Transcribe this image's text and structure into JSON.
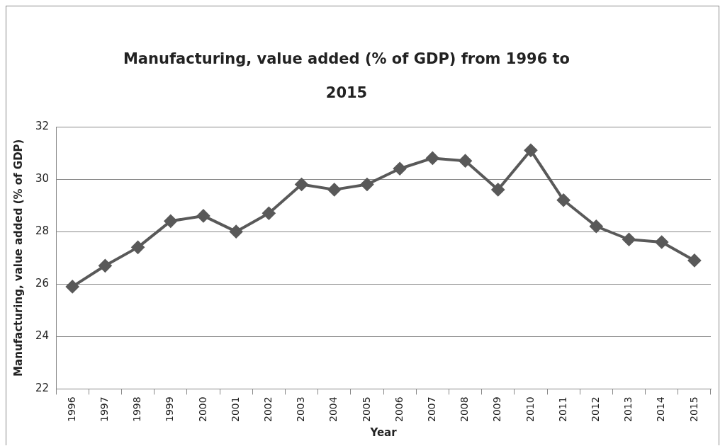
{
  "chart_data": {
    "type": "line",
    "title": "Manufacturing, value added (% of GDP) from 1996 to 2015",
    "xlabel": "Year",
    "ylabel": "Manufacturing, value added (% of GDP)",
    "categories": [
      "1996",
      "1997",
      "1998",
      "1999",
      "2000",
      "2001",
      "2002",
      "2003",
      "2004",
      "2005",
      "2006",
      "2007",
      "2008",
      "2009",
      "2010",
      "2011",
      "2012",
      "2013",
      "2014",
      "2015"
    ],
    "series": [
      {
        "color": "#595959",
        "values": [
          25.9,
          26.7,
          27.4,
          28.4,
          28.6,
          28.0,
          28.7,
          29.8,
          29.6,
          29.8,
          30.4,
          30.8,
          30.7,
          29.6,
          31.1,
          29.2,
          28.2,
          27.7,
          27.6,
          26.9
        ]
      }
    ],
    "ylim": [
      22,
      32
    ],
    "yticks": [
      22,
      24,
      26,
      28,
      30,
      32
    ],
    "grid": "y",
    "legend": false,
    "marker": "diamond",
    "line_style": "solid"
  }
}
